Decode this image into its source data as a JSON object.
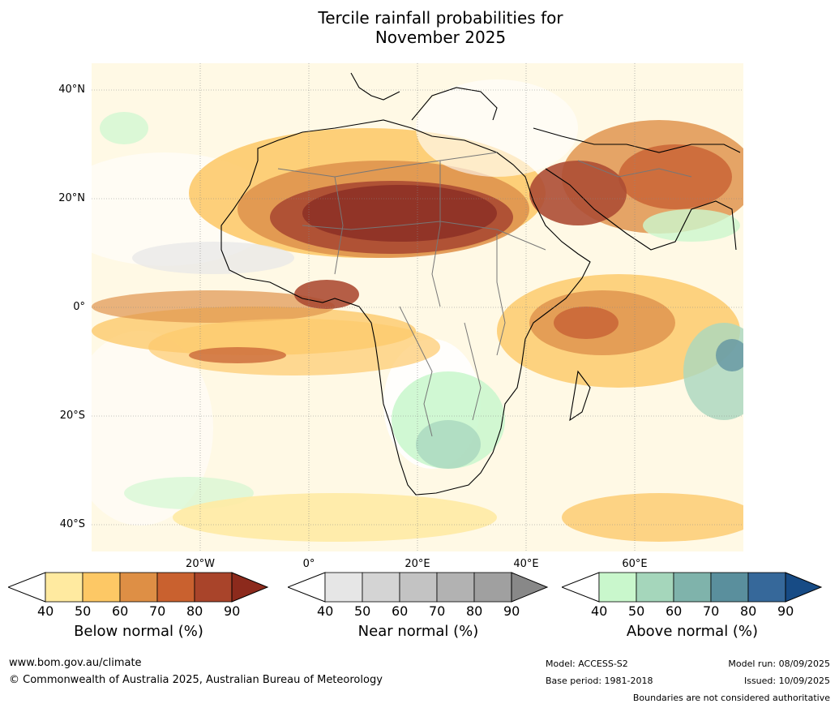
{
  "title_line1": "Tercile rainfall probabilities for",
  "title_line2": "November 2025",
  "lat_labels": [
    "40°N",
    "20°N",
    "0°",
    "20°S",
    "40°S"
  ],
  "lon_labels": [
    "20°W",
    "0°",
    "20°E",
    "40°E",
    "60°E"
  ],
  "colorbars": [
    {
      "title": "Below normal (%)",
      "ticks": [
        "40",
        "50",
        "60",
        "70",
        "80",
        "90"
      ],
      "colors": [
        "#ffeaa0",
        "#fdc865",
        "#de8f45",
        "#c9612f",
        "#a9442a",
        "#8c2a1c"
      ]
    },
    {
      "title": "Near normal (%)",
      "ticks": [
        "40",
        "50",
        "60",
        "70",
        "80",
        "90"
      ],
      "colors": [
        "#e6e6e6",
        "#d4d4d4",
        "#c3c3c3",
        "#b2b2b2",
        "#a0a0a0",
        "#888888"
      ]
    },
    {
      "title": "Above normal (%)",
      "ticks": [
        "40",
        "50",
        "60",
        "70",
        "80",
        "90"
      ],
      "colors": [
        "#c9f7cc",
        "#a5d6bb",
        "#7fb3ab",
        "#5a8f9d",
        "#36689a",
        "#174b85"
      ]
    }
  ],
  "footer": {
    "url": "www.bom.gov.au/climate",
    "copyright": "© Commonwealth of Australia 2025, Australian Bureau of Meteorology",
    "model": "Model: ACCESS-S2",
    "base_period": "Base period: 1981-2018",
    "model_run": "Model run: 08/09/2025",
    "issued": "Issued: 10/09/2025",
    "disclaimer": "Boundaries are not considered authoritative"
  }
}
